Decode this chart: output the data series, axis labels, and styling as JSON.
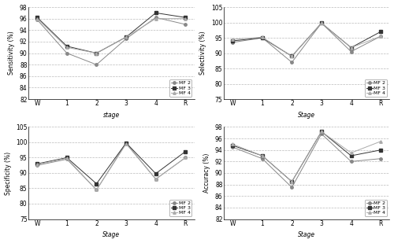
{
  "stages": [
    "W",
    "1",
    "2",
    "3",
    "4",
    "R"
  ],
  "sensitivity": {
    "MF 2": [
      95.8,
      90.0,
      88.0,
      92.5,
      96.2,
      95.0
    ],
    "MF 3": [
      96.2,
      91.2,
      90.0,
      92.8,
      97.0,
      96.2
    ],
    "MF 4": [
      96.0,
      91.0,
      90.0,
      92.8,
      96.0,
      96.0
    ]
  },
  "sensitivity_ylim": [
    82,
    98
  ],
  "sensitivity_yticks": [
    82,
    84,
    86,
    88,
    90,
    92,
    94,
    96,
    98
  ],
  "sensitivity_ylabel": "Sensitivity (%)",
  "sensitivity_xlabel": "stage",
  "selectivity": {
    "MF 2": [
      93.5,
      95.0,
      87.0,
      99.8,
      90.5,
      95.5
    ],
    "MF 3": [
      94.0,
      95.0,
      89.0,
      99.8,
      91.8,
      97.0
    ],
    "MF 4": [
      94.5,
      95.2,
      89.0,
      99.8,
      91.8,
      95.5
    ]
  },
  "selectivity_ylim": [
    75,
    105
  ],
  "selectivity_yticks": [
    75,
    80,
    85,
    90,
    95,
    100,
    105
  ],
  "selectivity_ylabel": "Selectivity (%)",
  "selectivity_xlabel": "Stage",
  "specificity": {
    "MF 2": [
      92.5,
      94.5,
      84.5,
      99.8,
      88.0,
      95.0
    ],
    "MF 3": [
      93.0,
      95.0,
      86.5,
      99.8,
      89.8,
      97.0
    ],
    "MF 4": [
      92.8,
      94.8,
      84.5,
      99.5,
      88.0,
      95.0
    ]
  },
  "specificity_ylim": [
    75,
    105
  ],
  "specificity_yticks": [
    75,
    80,
    85,
    90,
    95,
    100,
    105
  ],
  "specificity_ylabel": "Specificity (%)",
  "specificity_xlabel": "Stage",
  "accuracy": {
    "MF 2": [
      94.5,
      92.5,
      87.5,
      96.8,
      92.0,
      92.5
    ],
    "MF 3": [
      94.8,
      93.0,
      88.5,
      97.2,
      93.0,
      94.0
    ],
    "MF 4": [
      95.0,
      93.0,
      88.5,
      97.2,
      93.5,
      95.5
    ]
  },
  "accuracy_ylim": [
    82,
    98
  ],
  "accuracy_yticks": [
    82,
    84,
    86,
    88,
    90,
    92,
    94,
    96,
    98
  ],
  "accuracy_ylabel": "Accuracy (%)",
  "accuracy_xlabel": "Stage",
  "series": [
    "MF 2",
    "MF 3",
    "MF 4"
  ],
  "colors": [
    "#888888",
    "#333333",
    "#aaaaaa"
  ],
  "markers": [
    "o",
    "s",
    "^"
  ],
  "bg_color": "#ffffff",
  "grid_color": "#bbbbbb"
}
